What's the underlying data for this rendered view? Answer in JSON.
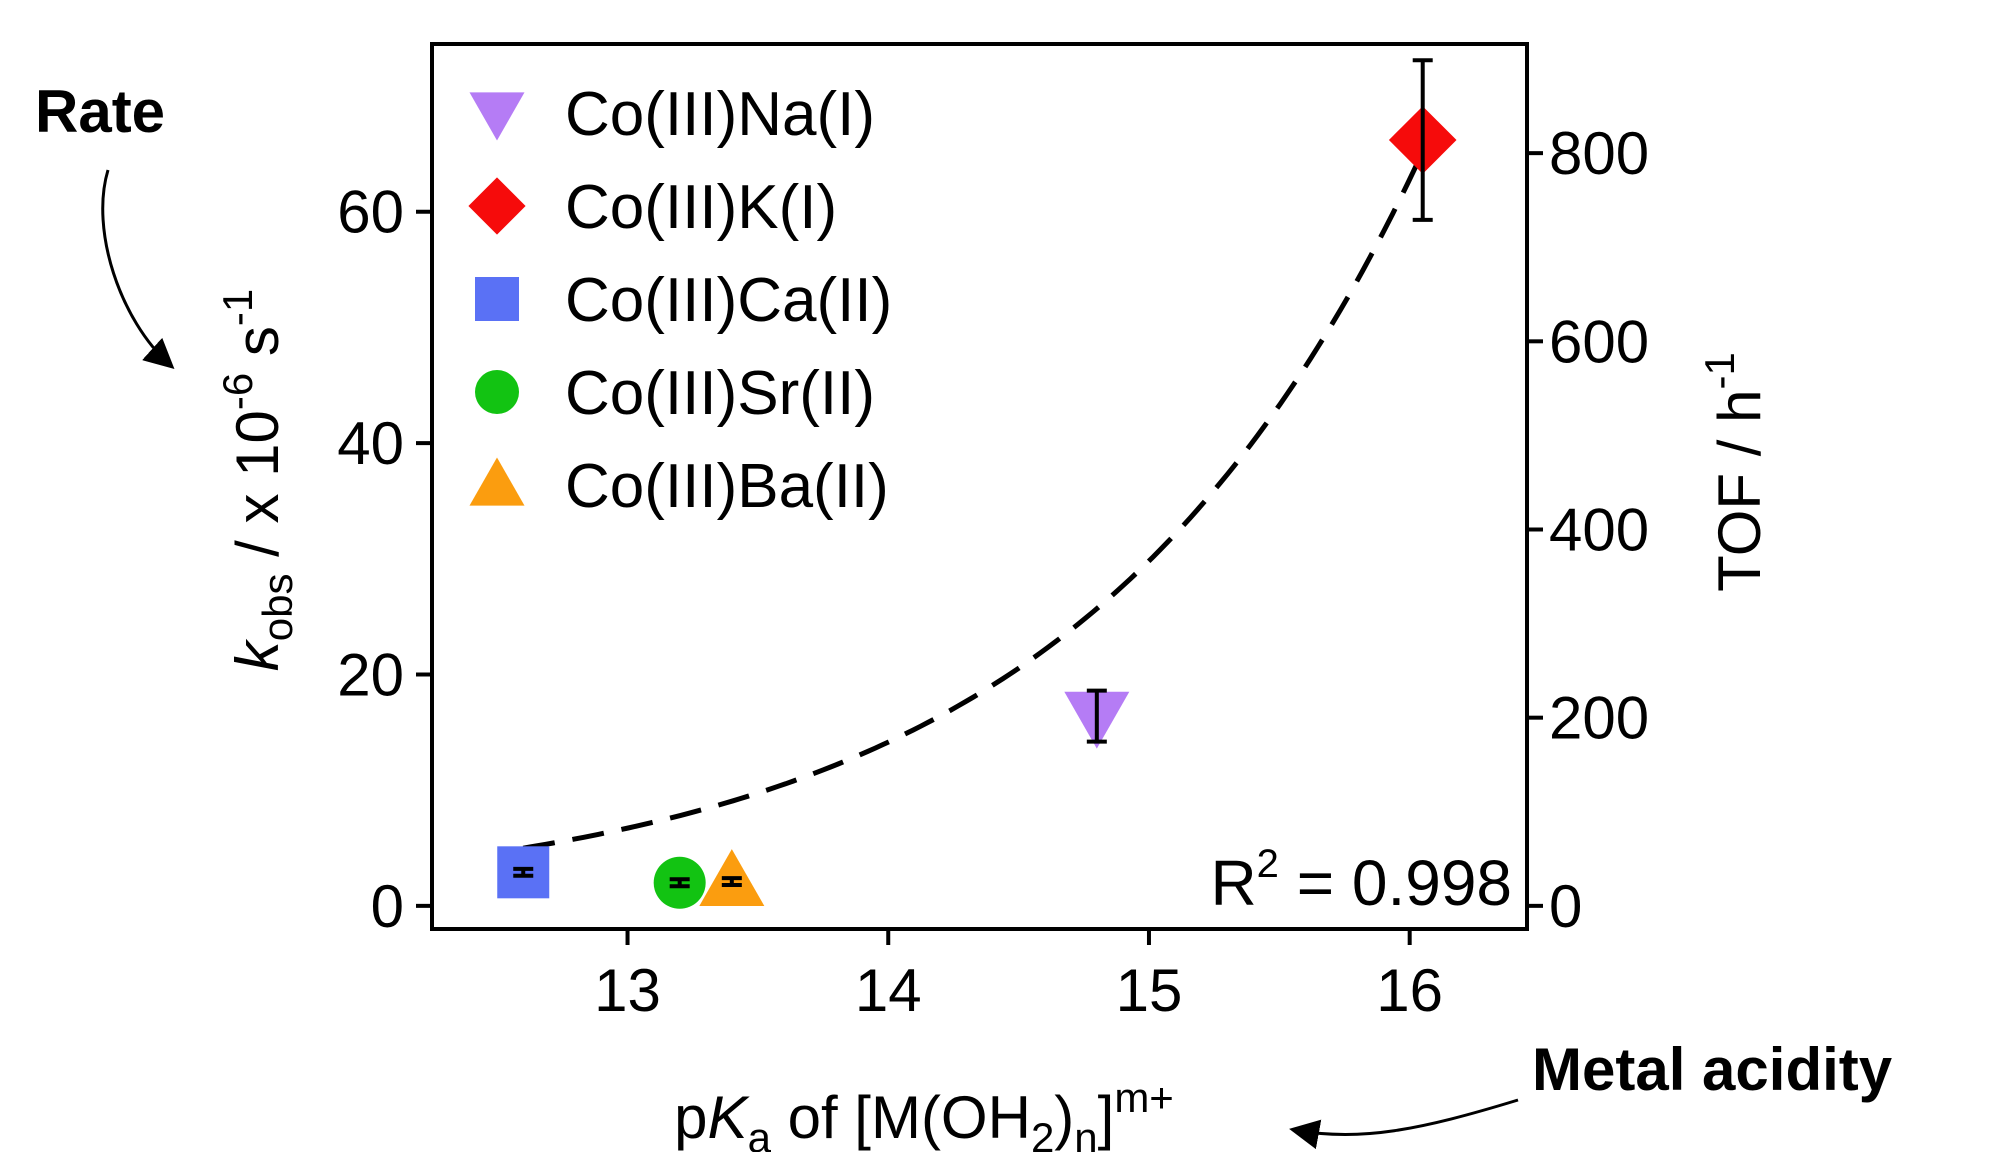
{
  "annotations": {
    "rate": "Rate",
    "metal_acidity": "Metal acidity"
  },
  "chart_data": {
    "type": "scatter",
    "x_axis": {
      "label_prefix": "p",
      "label_italic": "K",
      "label_sub": "a",
      "label_rest": " of [M(OH",
      "label_sub2": "2",
      "label_close": ")",
      "label_sub3": "n",
      "label_bracket": "]",
      "label_sup": "m+",
      "ticks": [
        13,
        14,
        15,
        16
      ],
      "tick_labels": [
        "13",
        "14",
        "15",
        "16"
      ],
      "range": [
        12.25,
        16.45
      ]
    },
    "y_axis_left": {
      "label_italic": "k",
      "label_sub": "obs",
      "label_rest": " / x 10",
      "label_sup": "-6",
      "label_unit": " s",
      "label_sup2": "-1",
      "ticks": [
        0,
        20,
        40,
        60
      ],
      "tick_labels": [
        "0",
        "20",
        "40",
        "60"
      ],
      "range": [
        -2,
        74.5
      ]
    },
    "y_axis_right": {
      "label_main": "TOF / h",
      "label_sup": "-1",
      "ticks": [
        0,
        200,
        400,
        600,
        800
      ],
      "tick_labels": [
        "0",
        "200",
        "400",
        "600",
        "800"
      ],
      "range": [
        -24.6,
        916
      ]
    },
    "series": [
      {
        "name": "Co(III)Na(I)",
        "marker": "triangle-down",
        "color": "#b57cf5",
        "x": 14.8,
        "y": 16.4,
        "err": 2.2
      },
      {
        "name": "Co(III)K(I)",
        "marker": "diamond",
        "color": "#f60b0b",
        "x": 16.05,
        "y": 66.2,
        "err": 6.9
      },
      {
        "name": "Co(III)Ca(II)",
        "marker": "square",
        "color": "#5a71f5",
        "x": 12.6,
        "y": 2.9,
        "err": 0.3
      },
      {
        "name": "Co(III)Sr(II)",
        "marker": "circle",
        "color": "#12c312",
        "x": 13.2,
        "y": 2.0,
        "err": 0.3
      },
      {
        "name": "Co(III)Ba(II)",
        "marker": "triangle-up",
        "color": "#fb9d0f",
        "x": 13.4,
        "y": 2.1,
        "err": 0.3
      }
    ],
    "fit": {
      "style": "dashed",
      "color": "#000000",
      "x_range": [
        12.6,
        16.05
      ],
      "model": "exponential",
      "a": 0.000418,
      "b": 0.745,
      "r2_prefix": "R",
      "r2_sup": "2",
      "r2_value": " = 0.998"
    },
    "legend": "top-left",
    "grid": false
  }
}
